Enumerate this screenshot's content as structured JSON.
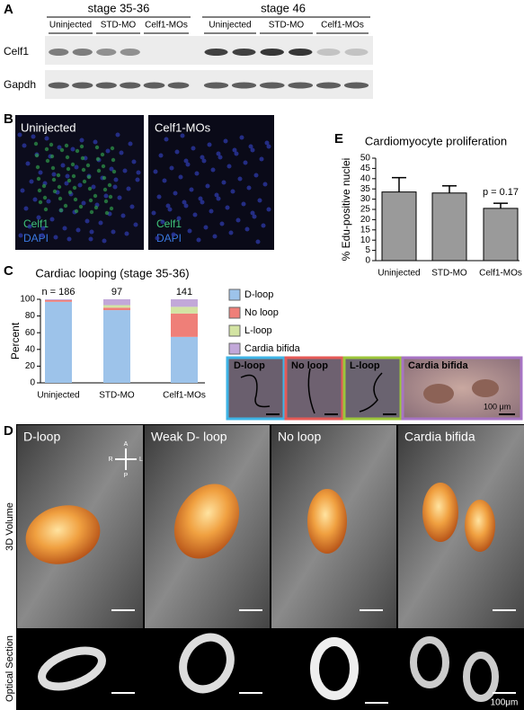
{
  "panel_labels": [
    "A",
    "B",
    "C",
    "D",
    "E"
  ],
  "blot": {
    "stages": [
      "stage 35-36",
      "stage 46"
    ],
    "lanes": [
      "Uninjected",
      "STD-MO",
      "Celf1-MOs",
      "Uninjected",
      "STD-MO",
      "Celf1-MOs"
    ],
    "rows": [
      "Celf1",
      "Gapdh"
    ]
  },
  "staining": {
    "conditions": [
      "Uninjected",
      "Celf1-MOs"
    ],
    "channels": [
      "Celf1",
      "DAPI"
    ]
  },
  "chart_data": [
    {
      "type": "bar",
      "stacked": true,
      "title": "Cardiac looping (stage 35-36)",
      "y_label": "Percent",
      "categories": [
        "Uninjected",
        "STD-MO",
        "Celf1-MOs"
      ],
      "annotations": [
        "n = 186",
        "97",
        "141"
      ],
      "series": [
        {
          "name": "D-loop",
          "color": "#9dc3ea",
          "values": [
            97,
            87,
            55
          ]
        },
        {
          "name": "No loop",
          "color": "#ef7f78",
          "values": [
            2,
            3,
            28
          ]
        },
        {
          "name": "L-loop",
          "color": "#d3e4a3",
          "values": [
            0,
            3,
            8
          ]
        },
        {
          "name": "Cardia bifida",
          "color": "#c2a8d9",
          "values": [
            1,
            7,
            9
          ]
        }
      ],
      "ylim": [
        0,
        100
      ],
      "yticks": [
        0,
        20,
        40,
        60,
        80,
        100
      ]
    },
    {
      "type": "bar",
      "title": "Cardiomyocyte proliferation",
      "y_label": "% Edu-positive nuclei",
      "categories": [
        "Uninjected",
        "STD-MO",
        "Celf1-MOs"
      ],
      "values": [
        33.5,
        33,
        25.5
      ],
      "errors": [
        7,
        3.5,
        2.5
      ],
      "color": "#9a9a9a",
      "annotation": "p = 0.17",
      "ylim": [
        0,
        50
      ],
      "yticks": [
        0,
        5,
        10,
        15,
        20,
        25,
        30,
        35,
        40,
        45,
        50
      ]
    }
  ],
  "looping_images": {
    "labels": [
      "D-loop",
      "No loop",
      "L-loop",
      "Cardia bifida"
    ],
    "scale_bar": "100 μm"
  },
  "heart_3d": {
    "columns": [
      "D-loop",
      "Weak D- loop",
      "No loop",
      "Cardia bifida"
    ],
    "rows": [
      "3D Volume",
      "Optical Section"
    ],
    "compass": [
      "A",
      "P",
      "R",
      "L"
    ],
    "scale_bar": "100μm"
  }
}
